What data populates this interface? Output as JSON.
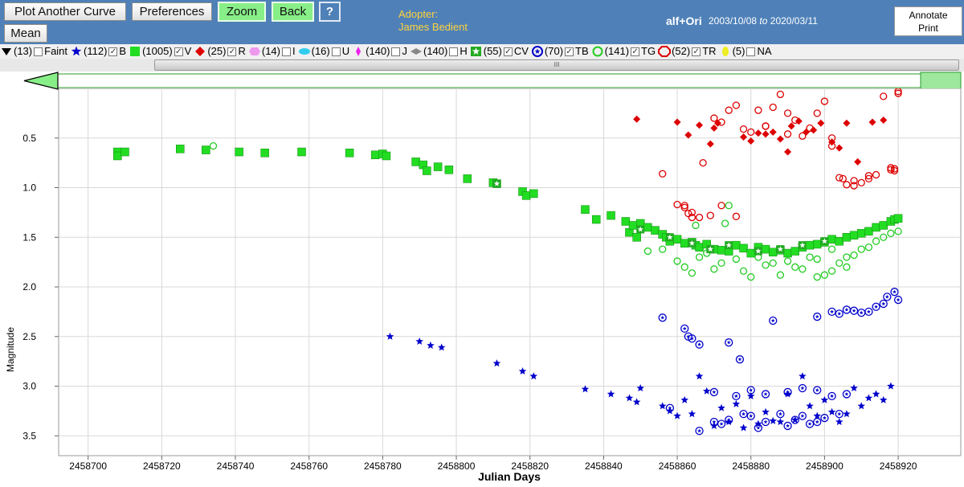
{
  "toolbar": {
    "plot_another": "Plot Another Curve",
    "preferences": "Preferences",
    "zoom": "Zoom",
    "back": "Back",
    "help": "?",
    "mean": "Mean"
  },
  "adopter": {
    "label": "Adopter:",
    "name": "James Bedient"
  },
  "star": {
    "name": "alf+Ori",
    "date_from": "2003/10/08",
    "to": "to",
    "date_to": "2020/03/11"
  },
  "annotate": {
    "line1": "Annotate",
    "line2": "Print"
  },
  "legend": [
    {
      "count": "(13)",
      "label": "Faint",
      "checked": false,
      "icon": "down-triangle-icon",
      "color": "#000000"
    },
    {
      "count": "(112)",
      "label": "B",
      "checked": true,
      "icon": "star-icon",
      "color": "#0000cc"
    },
    {
      "count": "(1005)",
      "label": "V",
      "checked": true,
      "icon": "square-icon",
      "color": "#22dd22"
    },
    {
      "count": "(25)",
      "label": "R",
      "checked": true,
      "icon": "diamond-icon",
      "color": "#dd0000"
    },
    {
      "count": "(14)",
      "label": "I",
      "checked": false,
      "icon": "hexagon-icon",
      "color": "#ee99ee"
    },
    {
      "count": "(16)",
      "label": "U",
      "checked": false,
      "icon": "ellipse-icon",
      "color": "#33ccee"
    },
    {
      "count": "(140)",
      "label": "J",
      "checked": false,
      "icon": "thin-diamond-icon",
      "color": "#ee22ee"
    },
    {
      "count": "(140)",
      "label": "H",
      "checked": false,
      "icon": "gray-diamond-icon",
      "color": "#888888"
    },
    {
      "count": "(55)",
      "label": "CV",
      "checked": true,
      "icon": "star-square-icon",
      "color": "#22aa22"
    },
    {
      "count": "(70)",
      "label": "TB",
      "checked": true,
      "icon": "star-circle-icon",
      "color": "#0000cc"
    },
    {
      "count": "(141)",
      "label": "TG",
      "checked": true,
      "icon": "circle-icon",
      "color": "#22cc22"
    },
    {
      "count": "(52)",
      "label": "TR",
      "checked": true,
      "icon": "octagon-icon",
      "color": "#dd0000"
    },
    {
      "count": "(5)",
      "label": "NA",
      "checked": false,
      "icon": "yellow-ellipse-icon",
      "color": "#eeee22"
    }
  ],
  "scroll_grip": "III",
  "chart_data": {
    "type": "scatter",
    "xlabel": "Julian Days",
    "ylabel": "Magnitude",
    "xlim": [
      2458692,
      2458937
    ],
    "ylim": [
      0.0,
      3.7
    ],
    "y_inverted": true,
    "grid": true,
    "xticks": [
      2458700,
      2458720,
      2458740,
      2458760,
      2458780,
      2458800,
      2458820,
      2458840,
      2458860,
      2458880,
      2458900,
      2458920
    ],
    "yticks": [
      0.5,
      1.0,
      1.5,
      2.0,
      2.5,
      3.0,
      3.5
    ],
    "ytick_labels": [
      "0.5",
      "1.0",
      "1.5",
      "2.0",
      "2.5",
      "3.0",
      "3.5"
    ],
    "series": [
      {
        "name": "V",
        "marker": "square",
        "color": "#22dd22",
        "x": [
          2458708,
          2458708,
          2458710,
          2458725,
          2458732,
          2458741,
          2458748,
          2458758,
          2458771,
          2458778,
          2458780,
          2458781,
          2458789,
          2458791,
          2458792,
          2458795,
          2458798,
          2458803,
          2458810,
          2458811,
          2458818,
          2458819,
          2458821,
          2458835,
          2458838,
          2458842,
          2458846,
          2458847,
          2458848,
          2458849,
          2458850,
          2458852,
          2458854,
          2458856,
          2458857,
          2458858,
          2458860,
          2458862,
          2458864,
          2458865,
          2458866,
          2458868,
          2458870,
          2458872,
          2458874,
          2458876,
          2458878,
          2458880,
          2458882,
          2458884,
          2458886,
          2458888,
          2458890,
          2458892,
          2458894,
          2458896,
          2458898,
          2458900,
          2458902,
          2458904,
          2458906,
          2458908,
          2458910,
          2458912,
          2458914,
          2458916,
          2458918,
          2458919,
          2458920
        ],
        "y": [
          0.64,
          0.68,
          0.64,
          0.61,
          0.62,
          0.64,
          0.65,
          0.64,
          0.65,
          0.67,
          0.66,
          0.68,
          0.74,
          0.77,
          0.83,
          0.79,
          0.82,
          0.91,
          0.95,
          0.96,
          1.04,
          1.08,
          1.06,
          1.22,
          1.32,
          1.28,
          1.34,
          1.45,
          1.38,
          1.5,
          1.36,
          1.4,
          1.43,
          1.47,
          1.5,
          1.54,
          1.52,
          1.56,
          1.55,
          1.58,
          1.6,
          1.57,
          1.62,
          1.63,
          1.64,
          1.58,
          1.61,
          1.66,
          1.6,
          1.62,
          1.65,
          1.63,
          1.66,
          1.64,
          1.6,
          1.58,
          1.57,
          1.55,
          1.52,
          1.54,
          1.5,
          1.48,
          1.46,
          1.44,
          1.4,
          1.38,
          1.34,
          1.32,
          1.31
        ]
      },
      {
        "name": "TG",
        "marker": "circle",
        "color": "#22cc22",
        "x": [
          2458734,
          2458852,
          2458856,
          2458860,
          2458862,
          2458864,
          2458866,
          2458868,
          2458870,
          2458872,
          2458874,
          2458876,
          2458878,
          2458880,
          2458882,
          2458884,
          2458886,
          2458888,
          2458890,
          2458892,
          2458894,
          2458896,
          2458898,
          2458900,
          2458902,
          2458904,
          2458906,
          2458908,
          2458910,
          2458912,
          2458914,
          2458916,
          2458918,
          2458920,
          2458865,
          2458873,
          2458898,
          2458902,
          2458906
        ],
        "y": [
          0.58,
          1.64,
          1.62,
          1.74,
          1.8,
          1.86,
          1.7,
          1.66,
          1.82,
          1.76,
          1.18,
          1.72,
          1.84,
          1.9,
          1.7,
          1.78,
          1.76,
          1.88,
          1.74,
          1.8,
          1.82,
          1.7,
          1.9,
          1.88,
          1.84,
          1.76,
          1.8,
          1.68,
          1.62,
          1.6,
          1.54,
          1.5,
          1.46,
          1.44,
          1.38,
          1.36,
          1.72,
          1.62,
          1.7
        ]
      },
      {
        "name": "R",
        "marker": "diamond",
        "color": "#dd0000",
        "x": [
          2458849,
          2458860,
          2458863,
          2458866,
          2458869,
          2458870,
          2458871,
          2458878,
          2458880,
          2458882,
          2458884,
          2458886,
          2458888,
          2458890,
          2458891,
          2458893,
          2458895,
          2458897,
          2458899,
          2458902,
          2458904,
          2458906,
          2458909,
          2458913,
          2458916
        ],
        "y": [
          0.31,
          0.34,
          0.47,
          0.37,
          0.56,
          0.4,
          0.35,
          0.49,
          0.53,
          0.45,
          0.46,
          0.44,
          0.51,
          0.64,
          0.38,
          0.33,
          0.44,
          0.42,
          0.35,
          0.54,
          0.6,
          0.35,
          0.74,
          0.34,
          0.32
        ]
      },
      {
        "name": "TR",
        "marker": "circle",
        "color": "#dd0000",
        "x": [
          2458856,
          2458860,
          2458862,
          2458863,
          2458864,
          2458867,
          2458870,
          2458872,
          2458874,
          2458876,
          2458878,
          2458880,
          2458882,
          2458884,
          2458886,
          2458888,
          2458890,
          2458892,
          2458894,
          2458896,
          2458898,
          2458900,
          2458902,
          2458904,
          2458906,
          2458908,
          2458910,
          2458912,
          2458914,
          2458916,
          2458918,
          2458919,
          2458920,
          2458872,
          2458869,
          2458876,
          2458902,
          2458905,
          2458908,
          2458912,
          2458918,
          2458919,
          2458920,
          2458862,
          2458864,
          2458866,
          2458884,
          2458890
        ],
        "y": [
          0.86,
          1.17,
          1.2,
          1.26,
          1.3,
          0.75,
          0.3,
          0.34,
          0.22,
          0.17,
          0.41,
          0.44,
          0.22,
          0.38,
          0.19,
          0.06,
          0.25,
          0.32,
          0.48,
          0.4,
          0.25,
          0.13,
          0.58,
          0.9,
          0.97,
          0.98,
          0.95,
          0.91,
          0.87,
          0.08,
          0.82,
          0.81,
          0.05,
          1.18,
          1.28,
          1.29,
          0.5,
          0.91,
          0.93,
          0.88,
          0.8,
          0.83,
          0.03,
          1.18,
          1.25,
          1.3,
          0.38,
          0.46
        ]
      },
      {
        "name": "TB",
        "marker": "starcircle",
        "color": "#0000cc",
        "x": [
          2458856,
          2458862,
          2458863,
          2458864,
          2458866,
          2458874,
          2458877,
          2458886,
          2458898,
          2458902,
          2458904,
          2458906,
          2458908,
          2458910,
          2458912,
          2458914,
          2458916,
          2458917,
          2458919,
          2458920,
          2458870,
          2458876,
          2458880,
          2458884,
          2458890,
          2458894,
          2458898,
          2458902,
          2458906,
          2458858,
          2458866,
          2458870,
          2458872,
          2458874,
          2458878,
          2458880,
          2458882,
          2458884,
          2458888,
          2458890,
          2458892,
          2458894,
          2458896,
          2458898,
          2458900,
          2458904
        ],
        "y": [
          2.31,
          2.42,
          2.5,
          2.52,
          2.58,
          2.56,
          2.73,
          2.34,
          2.3,
          2.25,
          2.27,
          2.23,
          2.24,
          2.26,
          2.25,
          2.2,
          2.17,
          2.1,
          2.05,
          2.13,
          3.06,
          3.1,
          3.04,
          3.08,
          3.06,
          3.02,
          3.04,
          3.1,
          3.08,
          3.22,
          3.45,
          3.36,
          3.38,
          3.34,
          3.28,
          3.3,
          3.42,
          3.36,
          3.28,
          3.4,
          3.34,
          3.3,
          3.38,
          3.36,
          3.32,
          3.28
        ]
      },
      {
        "name": "B",
        "marker": "star",
        "color": "#0000cc",
        "x": [
          2458782,
          2458790,
          2458793,
          2458796,
          2458811,
          2458818,
          2458821,
          2458835,
          2458842,
          2458847,
          2458849,
          2458850,
          2458856,
          2458858,
          2458860,
          2458862,
          2458864,
          2458866,
          2458868,
          2458870,
          2458872,
          2458874,
          2458876,
          2458878,
          2458880,
          2458882,
          2458884,
          2458886,
          2458888,
          2458890,
          2458892,
          2458894,
          2458896,
          2458898,
          2458900,
          2458902,
          2458904,
          2458906,
          2458908,
          2458910,
          2458912,
          2458914,
          2458916,
          2458918
        ],
        "y": [
          2.5,
          2.55,
          2.59,
          2.61,
          2.77,
          2.85,
          2.9,
          3.03,
          3.08,
          3.12,
          3.16,
          3.02,
          3.2,
          3.25,
          3.3,
          3.14,
          3.28,
          2.9,
          3.05,
          3.4,
          3.22,
          3.36,
          3.18,
          3.42,
          3.1,
          3.38,
          3.26,
          3.35,
          3.36,
          3.08,
          3.34,
          2.9,
          3.2,
          3.3,
          3.14,
          3.26,
          3.36,
          3.28,
          3.02,
          3.2,
          3.12,
          3.08,
          3.14,
          3.0
        ]
      },
      {
        "name": "CV",
        "marker": "starsquare",
        "color": "#22aa22",
        "x": [
          2458811,
          2458850,
          2458858,
          2458864,
          2458869,
          2458874,
          2458882,
          2458888,
          2458894,
          2458900
        ],
        "y": [
          0.96,
          1.42,
          1.5,
          1.56,
          1.62,
          1.58,
          1.64,
          1.62,
          1.58,
          1.54
        ]
      }
    ]
  }
}
